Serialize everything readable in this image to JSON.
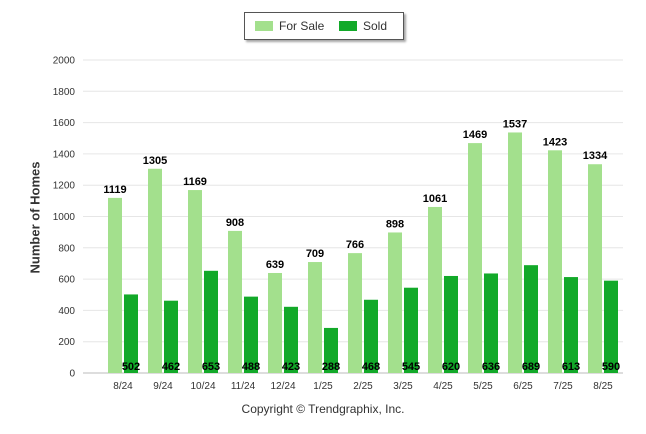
{
  "chart_data": {
    "type": "bar",
    "categories": [
      "8/24",
      "9/24",
      "10/24",
      "11/24",
      "12/24",
      "1/25",
      "2/25",
      "3/25",
      "4/25",
      "5/25",
      "6/25",
      "7/25",
      "8/25"
    ],
    "series": [
      {
        "name": "For Sale",
        "color": "#a3e08d",
        "values": [
          1119,
          1305,
          1169,
          908,
          639,
          709,
          766,
          898,
          1061,
          1469,
          1537,
          1423,
          1334
        ]
      },
      {
        "name": "Sold",
        "color": "#12a929",
        "values": [
          502,
          462,
          653,
          488,
          423,
          288,
          468,
          545,
          620,
          636,
          689,
          613,
          590
        ]
      }
    ],
    "ylabel": "Number of Homes",
    "xlabel": "",
    "ylim": [
      0,
      2000
    ],
    "yticks": [
      0,
      200,
      400,
      600,
      800,
      1000,
      1200,
      1400,
      1600,
      1800,
      2000
    ],
    "grid": true,
    "legend_position": "top-center"
  },
  "footer": {
    "copyright": "Copyright © Trendgraphix, Inc."
  }
}
